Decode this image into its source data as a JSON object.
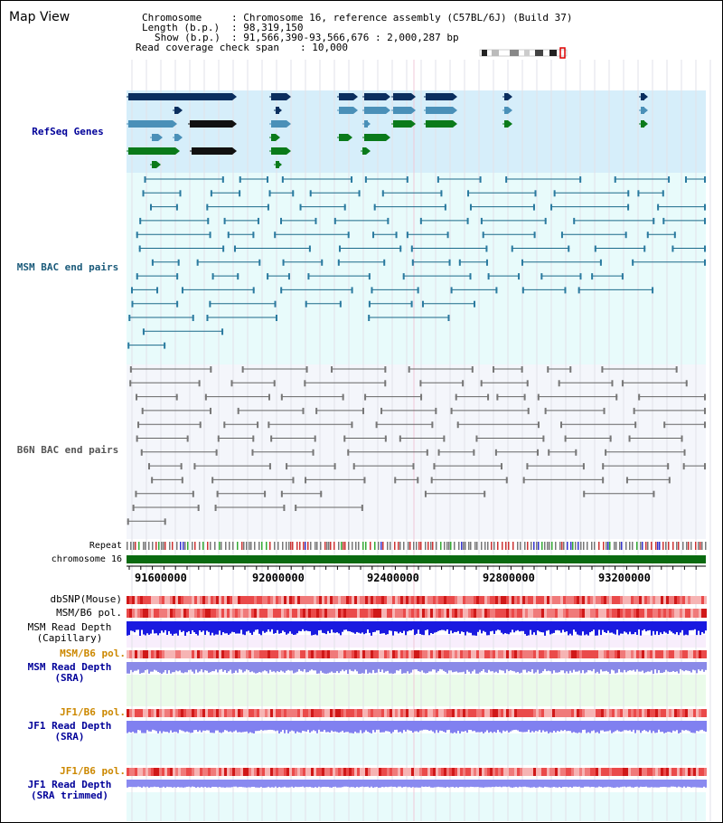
{
  "header": {
    "title": "Map View",
    "chromosome_label": "Chromosome",
    "chromosome_value": ": Chromosome 16, reference assembly (C57BL/6J) (Build 37)",
    "length_label": "Length (b.p.)",
    "length_value": ": 98,319,150",
    "show_label": "Show (b.p.)",
    "show_value": ": 91,566,390-93,566,676 : 2,000,287 bp",
    "coverage_label": "Read coverage check span",
    "coverage_value": ": 10,000"
  },
  "tracks": {
    "refseq": "RefSeq Genes",
    "msm_bac": "MSM BAC end pairs",
    "b6n_bac": "B6N BAC end pairs",
    "repeat": "Repeat",
    "chromosome": "chromosome 16",
    "dbsnp": "dbSNP(Mouse)",
    "msm_b6_pol_1": "MSM/B6 pol.",
    "msm_read_depth_cap_1": "MSM Read Depth",
    "msm_read_depth_cap_2": "(Capillary)",
    "msm_b6_pol_2": "MSM/B6 pol.",
    "msm_read_depth_sra_1": "MSM Read Depth",
    "msm_read_depth_sra_2": "(SRA)",
    "jf1_b6_pol_1": "JF1/B6 pol.",
    "jf1_read_depth_sra_1": "JF1 Read Depth",
    "jf1_read_depth_sra_2": "(SRA)",
    "jf1_b6_pol_2": "JF1/B6 pol.",
    "jf1_read_depth_trim_1": "JF1 Read Depth",
    "jf1_read_depth_trim_2": "(SRA trimmed)"
  },
  "ruler": {
    "ticks": [
      "91600000",
      "92000000",
      "92400000",
      "92800000",
      "93200000"
    ]
  },
  "colors": {
    "refseq_dark": "#0b2e5e",
    "refseq_light": "#4a90b8",
    "refseq_green": "#0a7a1a",
    "refseq_bg": "#d6eefa",
    "msm_bg": "#e8fbfb",
    "msm_line": "#1a6a8a",
    "b6n_bg": "#f4f6fb",
    "b6n_line": "#666666",
    "chrom_bar": "#0a6a10",
    "link_blue": "#000099",
    "pol_orange": "#cc8800"
  }
}
